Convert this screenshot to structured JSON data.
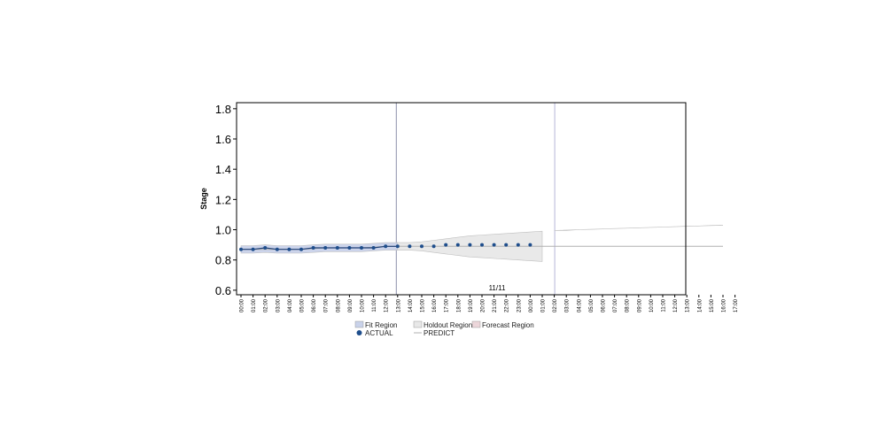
{
  "chart_data": {
    "type": "line",
    "title": "",
    "xlabel": "",
    "ylabel": "Stage",
    "ylim": [
      0.57,
      1.84
    ],
    "yticks": [
      0.6,
      0.8,
      1.0,
      1.2,
      1.4,
      1.6,
      1.8
    ],
    "ytick_labels": [
      "0.6",
      "0.8",
      "1.0",
      "1.2",
      "1.4",
      "1.6",
      "1.8"
    ],
    "x_tick_labels": [
      "00:00",
      "01:00",
      "02:00",
      "03:00",
      "04:00",
      "05:00",
      "06:00",
      "07:00",
      "08:00",
      "09:00",
      "10:00",
      "11:00",
      "12:00",
      "13:00",
      "14:00",
      "15:00",
      "16:00",
      "17:00",
      "18:00",
      "19:00",
      "20:00",
      "21:00",
      "22:00",
      "23:00",
      "00:00",
      "01:00",
      "02:00",
      "03:00",
      "04:00",
      "05:00",
      "06:00",
      "07:00",
      "08:00",
      "09:00",
      "10:00",
      "11:00",
      "12:00",
      "13:00",
      "14:00",
      "15:00",
      "16:00",
      "17:00"
    ],
    "date_annotation": "11/11",
    "legend": {
      "placement": "bottom",
      "items": [
        {
          "label": "Fit Region",
          "kind": "band",
          "color": "#c9d2ea"
        },
        {
          "label": "Holdout Region",
          "kind": "band",
          "color": "#e8e8e8"
        },
        {
          "label": "Forecast Region",
          "kind": "band",
          "color": "#ecd6da"
        },
        {
          "label": "ACTUAL",
          "kind": "marker",
          "color": "#1f4e8c"
        },
        {
          "label": "PREDICT",
          "kind": "line",
          "color": "#b0b0b0"
        }
      ]
    },
    "regions": [
      {
        "name": "Fit Region",
        "x_start": "00:00",
        "x_end": "15:00"
      },
      {
        "name": "Holdout Region",
        "x_start": "15:00",
        "x_end": "03:00"
      },
      {
        "name": "Forecast Region",
        "x_start": "03:00",
        "x_end": "17:00"
      }
    ],
    "series": [
      {
        "name": "ACTUAL",
        "values": [
          0.87,
          0.87,
          0.88,
          0.87,
          0.87,
          0.87,
          0.88,
          0.88,
          0.88,
          0.88,
          0.88,
          0.88,
          0.89,
          0.89,
          0.89,
          0.89,
          0.89,
          0.9,
          0.9,
          0.9,
          0.9,
          0.9,
          0.9,
          0.9,
          0.9
        ]
      },
      {
        "name": "PREDICT",
        "values": [
          0.87,
          0.87,
          0.87,
          0.87,
          0.87,
          0.87,
          0.875,
          0.88,
          0.88,
          0.88,
          0.88,
          0.885,
          0.89,
          0.89,
          0.89,
          0.89,
          0.89,
          0.89,
          0.89,
          0.89,
          0.89,
          0.89,
          0.89,
          0.89,
          0.89,
          0.89,
          0.89,
          0.89,
          0.89,
          0.89,
          0.89,
          0.89,
          0.89,
          0.89,
          0.89,
          0.89,
          0.89,
          0.89,
          0.89,
          0.89,
          0.89
        ]
      }
    ],
    "confidence_band": {
      "lower": [
        0.845,
        0.845,
        0.85,
        0.845,
        0.845,
        0.845,
        0.85,
        0.855,
        0.855,
        0.855,
        0.855,
        0.86,
        0.865,
        0.865,
        0.865,
        0.86,
        0.85,
        0.84,
        0.83,
        0.82,
        0.815,
        0.81,
        0.805,
        0.8,
        0.795,
        0.79,
        0.785,
        0.785,
        0.78,
        0.778,
        0.775,
        0.772,
        0.77,
        0.767,
        0.765,
        0.762,
        0.76,
        0.757,
        0.755,
        0.752,
        0.75
      ],
      "upper": [
        0.895,
        0.895,
        0.9,
        0.895,
        0.895,
        0.895,
        0.9,
        0.905,
        0.905,
        0.905,
        0.905,
        0.91,
        0.915,
        0.915,
        0.915,
        0.92,
        0.93,
        0.94,
        0.95,
        0.96,
        0.965,
        0.97,
        0.975,
        0.98,
        0.985,
        0.99,
        0.995,
        0.995,
        1.0,
        1.002,
        1.005,
        1.008,
        1.01,
        1.013,
        1.015,
        1.018,
        1.02,
        1.023,
        1.025,
        1.028,
        1.03
      ]
    },
    "grid": false
  }
}
